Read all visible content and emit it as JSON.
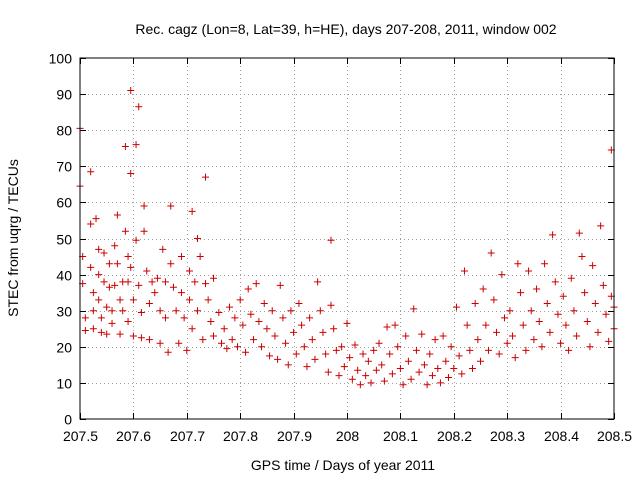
{
  "chart_data": {
    "type": "scatter",
    "title": "Rec. cagz (Lon=8, Lat=39, h=HE), days 207-208, 2011, window 002",
    "xlabel": "GPS time / Days of year 2011",
    "ylabel": "STEC from uqrg / TECUs",
    "xlim": [
      207.5,
      208.5
    ],
    "ylim": [
      0,
      100
    ],
    "xticks": [
      207.5,
      207.6,
      207.7,
      207.8,
      207.9,
      208,
      208.1,
      208.2,
      208.3,
      208.4,
      208.5
    ],
    "xtick_labels": [
      "207.5",
      "207.6",
      "207.7",
      "207.8",
      "207.9",
      "208",
      "208.1",
      "208.2",
      "208.3",
      "208.4",
      "208.5"
    ],
    "yticks": [
      0,
      10,
      20,
      30,
      40,
      50,
      60,
      70,
      80,
      90,
      100
    ],
    "ytick_labels": [
      "0",
      "10",
      "20",
      "30",
      "40",
      "50",
      "60",
      "70",
      "80",
      "90",
      "100"
    ],
    "grid": true,
    "marker": "+",
    "color": "#cc0000",
    "series": [
      {
        "name": "STEC",
        "points": [
          [
            207.5,
            80.5
          ],
          [
            207.5,
            64.5
          ],
          [
            207.505,
            45
          ],
          [
            207.505,
            37.5
          ],
          [
            207.51,
            28
          ],
          [
            207.51,
            24.5
          ],
          [
            207.52,
            68.5
          ],
          [
            207.52,
            54
          ],
          [
            207.52,
            42
          ],
          [
            207.525,
            35
          ],
          [
            207.525,
            30
          ],
          [
            207.525,
            25
          ],
          [
            207.53,
            55.5
          ],
          [
            207.535,
            47
          ],
          [
            207.535,
            40
          ],
          [
            207.535,
            33
          ],
          [
            207.54,
            28
          ],
          [
            207.54,
            24
          ],
          [
            207.545,
            46
          ],
          [
            207.545,
            38
          ],
          [
            207.55,
            31
          ],
          [
            207.55,
            23.5
          ],
          [
            207.555,
            43
          ],
          [
            207.555,
            36.5
          ],
          [
            207.56,
            30
          ],
          [
            207.56,
            26.5
          ],
          [
            207.565,
            48
          ],
          [
            207.565,
            37
          ],
          [
            207.57,
            56.5
          ],
          [
            207.57,
            43
          ],
          [
            207.575,
            33
          ],
          [
            207.575,
            23.5
          ],
          [
            207.58,
            38
          ],
          [
            207.58,
            30
          ],
          [
            207.585,
            75.5
          ],
          [
            207.585,
            52
          ],
          [
            207.59,
            45
          ],
          [
            207.59,
            38
          ],
          [
            207.59,
            27
          ],
          [
            207.595,
            91
          ],
          [
            207.595,
            68
          ],
          [
            207.595,
            42
          ],
          [
            207.6,
            33
          ],
          [
            207.6,
            23
          ],
          [
            207.605,
            76
          ],
          [
            207.605,
            49.5
          ],
          [
            207.61,
            86.5
          ],
          [
            207.61,
            37
          ],
          [
            207.615,
            29.5
          ],
          [
            207.615,
            22.5
          ],
          [
            207.62,
            59
          ],
          [
            207.62,
            52
          ],
          [
            207.625,
            41
          ],
          [
            207.63,
            32
          ],
          [
            207.63,
            22
          ],
          [
            207.635,
            38
          ],
          [
            207.64,
            35
          ],
          [
            207.645,
            39
          ],
          [
            207.65,
            30
          ],
          [
            207.65,
            21
          ],
          [
            207.655,
            47
          ],
          [
            207.66,
            38
          ],
          [
            207.66,
            28
          ],
          [
            207.665,
            18.5
          ],
          [
            207.67,
            59
          ],
          [
            207.67,
            43
          ],
          [
            207.675,
            36.5
          ],
          [
            207.68,
            30
          ],
          [
            207.685,
            21
          ],
          [
            207.69,
            45
          ],
          [
            207.69,
            35
          ],
          [
            207.695,
            28
          ],
          [
            207.7,
            19
          ],
          [
            207.705,
            41
          ],
          [
            207.705,
            33
          ],
          [
            207.71,
            57.5
          ],
          [
            207.71,
            25
          ],
          [
            207.715,
            38
          ],
          [
            207.72,
            50
          ],
          [
            207.72,
            30
          ],
          [
            207.725,
            45
          ],
          [
            207.73,
            22
          ],
          [
            207.735,
            67
          ],
          [
            207.735,
            37.5
          ],
          [
            207.74,
            33
          ],
          [
            207.745,
            27
          ],
          [
            207.75,
            39
          ],
          [
            207.75,
            23
          ],
          [
            207.76,
            29.5
          ],
          [
            207.765,
            21
          ],
          [
            207.77,
            25
          ],
          [
            207.775,
            19.5
          ],
          [
            207.78,
            31
          ],
          [
            207.785,
            22
          ],
          [
            207.79,
            28
          ],
          [
            207.795,
            20
          ],
          [
            207.8,
            33
          ],
          [
            207.805,
            26
          ],
          [
            207.81,
            18.5
          ],
          [
            207.815,
            36
          ],
          [
            207.82,
            29
          ],
          [
            207.825,
            22
          ],
          [
            207.83,
            37.5
          ],
          [
            207.835,
            27
          ],
          [
            207.84,
            20
          ],
          [
            207.845,
            32
          ],
          [
            207.85,
            25
          ],
          [
            207.855,
            17.5
          ],
          [
            207.86,
            30
          ],
          [
            207.865,
            23
          ],
          [
            207.87,
            16.5
          ],
          [
            207.875,
            37
          ],
          [
            207.88,
            28
          ],
          [
            207.885,
            21
          ],
          [
            207.89,
            15
          ],
          [
            207.895,
            30
          ],
          [
            207.9,
            24
          ],
          [
            207.905,
            18
          ],
          [
            207.91,
            32
          ],
          [
            207.915,
            26
          ],
          [
            207.92,
            20
          ],
          [
            207.925,
            14.5
          ],
          [
            207.93,
            28
          ],
          [
            207.935,
            22
          ],
          [
            207.94,
            16.5
          ],
          [
            207.945,
            38
          ],
          [
            207.95,
            30
          ],
          [
            207.955,
            24
          ],
          [
            207.96,
            18
          ],
          [
            207.965,
            13
          ],
          [
            207.97,
            49.5
          ],
          [
            207.97,
            31.5
          ],
          [
            207.975,
            25
          ],
          [
            207.98,
            19
          ],
          [
            207.985,
            12
          ],
          [
            207.99,
            20
          ],
          [
            207.995,
            14.5
          ],
          [
            208.0,
            26.5
          ],
          [
            208.005,
            17
          ],
          [
            208.01,
            11
          ],
          [
            208.015,
            20.5
          ],
          [
            208.02,
            13.5
          ],
          [
            208.025,
            9.5
          ],
          [
            208.03,
            18
          ],
          [
            208.035,
            12
          ],
          [
            208.04,
            16
          ],
          [
            208.045,
            10
          ],
          [
            208.05,
            19
          ],
          [
            208.055,
            13.5
          ],
          [
            208.06,
            21
          ],
          [
            208.065,
            15
          ],
          [
            208.07,
            10.5
          ],
          [
            208.075,
            25.5
          ],
          [
            208.08,
            18
          ],
          [
            208.085,
            12.5
          ],
          [
            208.09,
            26
          ],
          [
            208.095,
            20
          ],
          [
            208.1,
            14
          ],
          [
            208.105,
            9.5
          ],
          [
            208.11,
            23
          ],
          [
            208.115,
            16
          ],
          [
            208.12,
            11
          ],
          [
            208.125,
            30.5
          ],
          [
            208.13,
            19
          ],
          [
            208.135,
            13
          ],
          [
            208.14,
            23.5
          ],
          [
            208.145,
            15
          ],
          [
            208.15,
            9.5
          ],
          [
            208.155,
            18
          ],
          [
            208.16,
            12
          ],
          [
            208.165,
            22
          ],
          [
            208.17,
            14
          ],
          [
            208.175,
            10
          ],
          [
            208.18,
            23
          ],
          [
            208.185,
            16
          ],
          [
            208.19,
            11.5
          ],
          [
            208.195,
            20
          ],
          [
            208.2,
            14
          ],
          [
            208.205,
            31
          ],
          [
            208.21,
            17.5
          ],
          [
            208.215,
            12.5
          ],
          [
            208.22,
            41
          ],
          [
            208.225,
            26
          ],
          [
            208.23,
            19
          ],
          [
            208.235,
            14
          ],
          [
            208.24,
            32
          ],
          [
            208.245,
            22
          ],
          [
            208.25,
            16
          ],
          [
            208.255,
            36
          ],
          [
            208.26,
            26
          ],
          [
            208.265,
            19
          ],
          [
            208.27,
            46
          ],
          [
            208.275,
            33
          ],
          [
            208.28,
            24
          ],
          [
            208.285,
            18
          ],
          [
            208.29,
            40
          ],
          [
            208.295,
            28
          ],
          [
            208.3,
            21
          ],
          [
            208.305,
            30
          ],
          [
            208.31,
            23
          ],
          [
            208.315,
            17
          ],
          [
            208.32,
            43
          ],
          [
            208.325,
            35
          ],
          [
            208.33,
            26
          ],
          [
            208.335,
            19
          ],
          [
            208.34,
            41
          ],
          [
            208.345,
            30
          ],
          [
            208.35,
            22
          ],
          [
            208.355,
            36
          ],
          [
            208.36,
            27
          ],
          [
            208.365,
            20
          ],
          [
            208.37,
            43
          ],
          [
            208.375,
            32
          ],
          [
            208.38,
            24
          ],
          [
            208.385,
            51
          ],
          [
            208.39,
            38
          ],
          [
            208.395,
            29
          ],
          [
            208.4,
            21
          ],
          [
            208.405,
            34
          ],
          [
            208.41,
            26
          ],
          [
            208.415,
            19
          ],
          [
            208.42,
            39
          ],
          [
            208.425,
            30
          ],
          [
            208.43,
            23
          ],
          [
            208.435,
            51.5
          ],
          [
            208.44,
            45
          ],
          [
            208.445,
            35
          ],
          [
            208.45,
            27
          ],
          [
            208.455,
            20
          ],
          [
            208.46,
            42.5
          ],
          [
            208.465,
            32
          ],
          [
            208.47,
            24
          ],
          [
            208.475,
            53.5
          ],
          [
            208.48,
            37
          ],
          [
            208.485,
            29
          ],
          [
            208.49,
            21.5
          ],
          [
            208.495,
            74.5
          ],
          [
            208.495,
            34
          ],
          [
            208.5,
            31
          ],
          [
            208.5,
            25
          ]
        ]
      }
    ]
  }
}
